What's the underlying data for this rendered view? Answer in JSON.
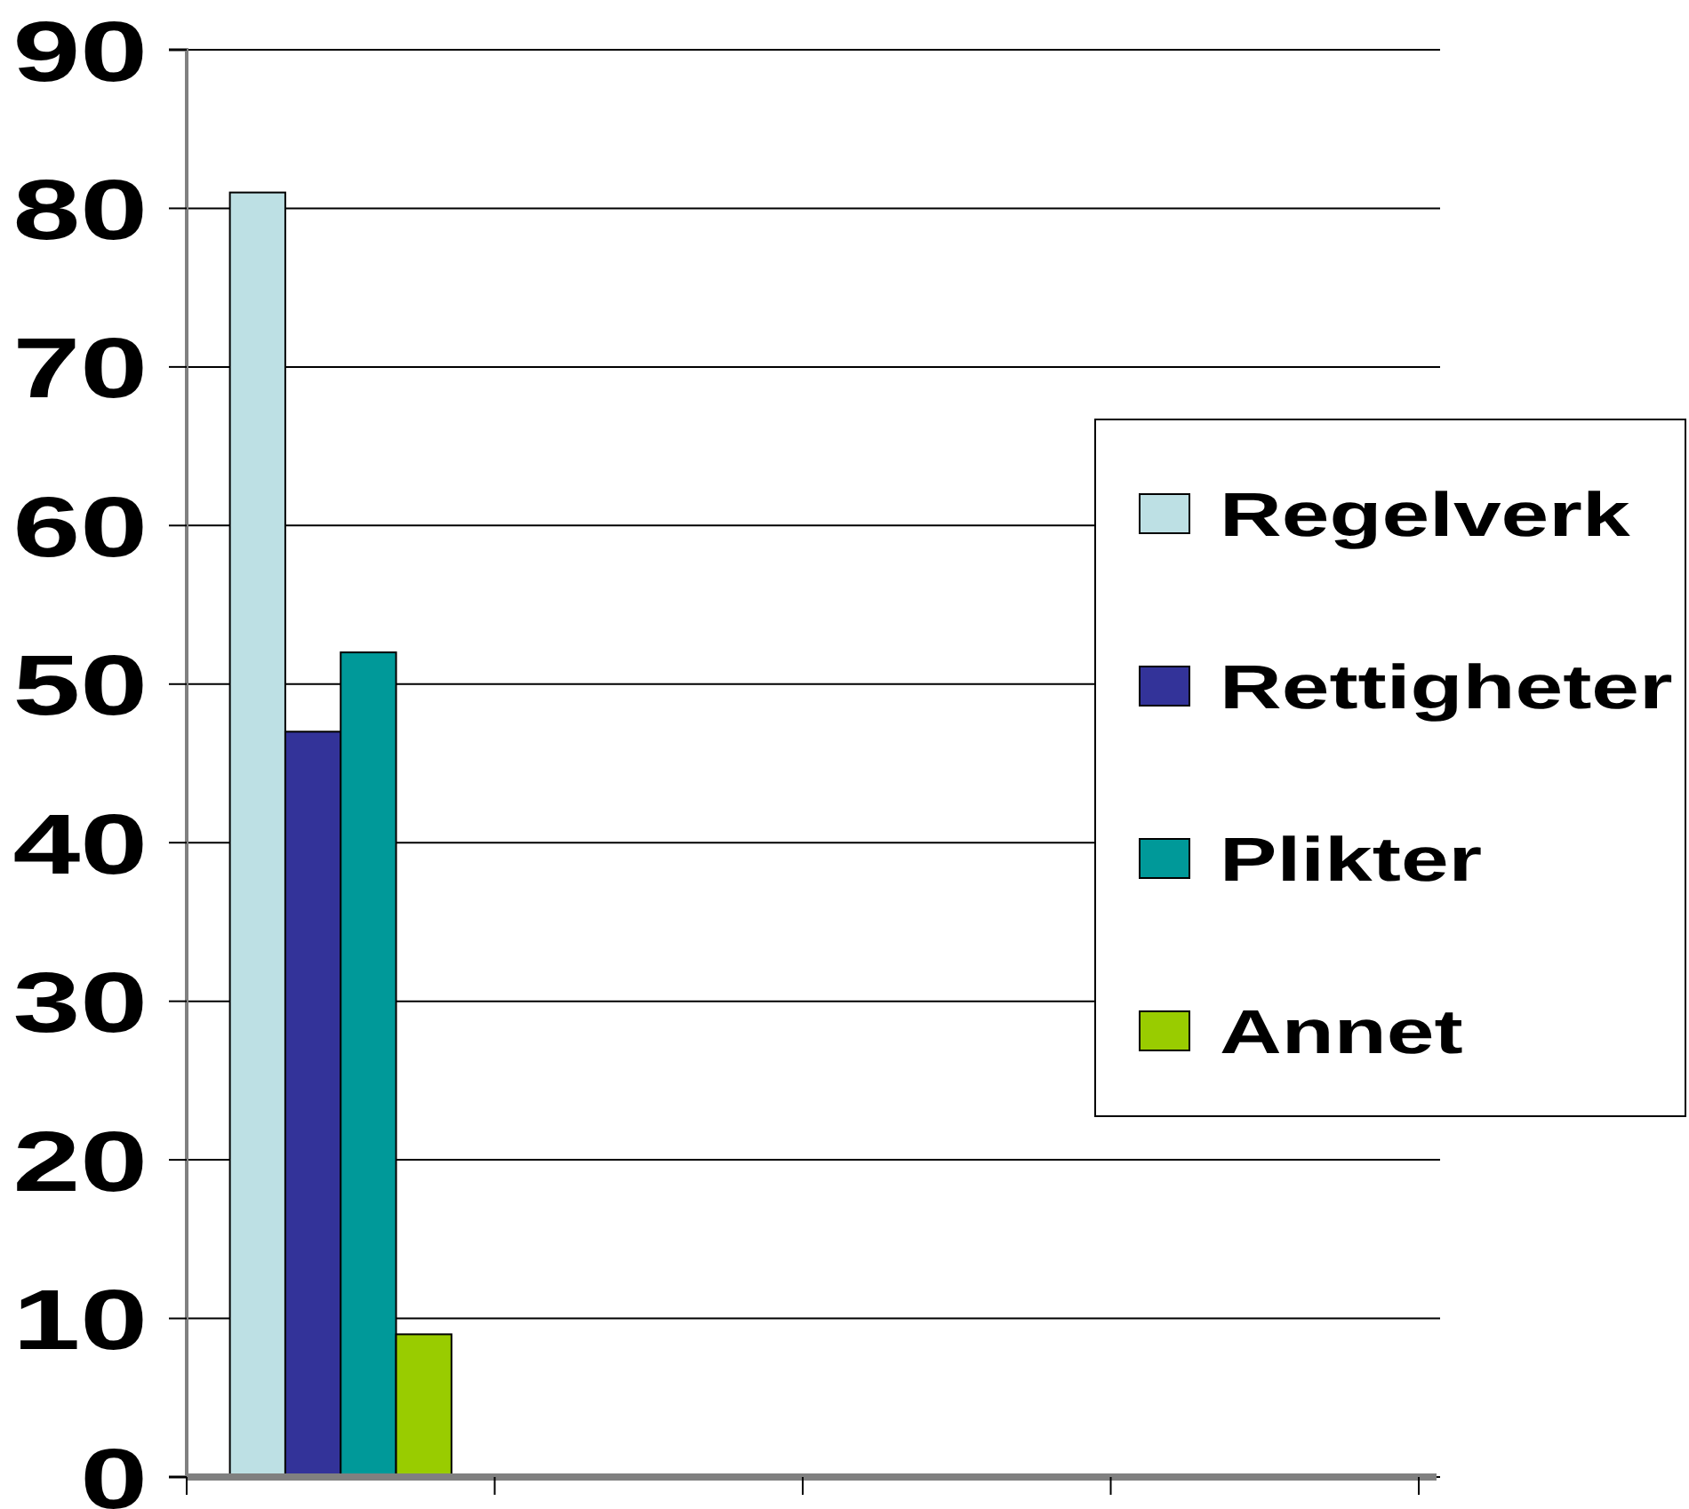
{
  "chart_data": {
    "type": "bar",
    "categories": [
      null,
      null,
      null,
      null
    ],
    "series": [
      {
        "name": "Regelverk",
        "color": "#bde0e4",
        "values": [
          81,
          null,
          null,
          null
        ]
      },
      {
        "name": "Rettigheter",
        "color": "#333399",
        "values": [
          47,
          null,
          null,
          null
        ]
      },
      {
        "name": "Plikter",
        "color": "#009999",
        "values": [
          52,
          null,
          null,
          null
        ]
      },
      {
        "name": "Annet",
        "color": "#99cc00",
        "values": [
          9,
          null,
          null,
          null
        ]
      }
    ],
    "ylim": [
      0,
      90
    ],
    "yticks": [
      0,
      10,
      20,
      30,
      40,
      50,
      60,
      70,
      80,
      90
    ],
    "grid": "y",
    "legend": "right",
    "tick_labels": "y"
  }
}
